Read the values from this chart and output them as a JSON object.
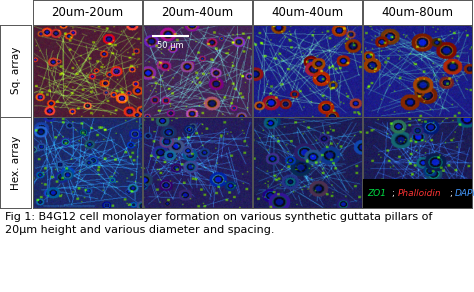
{
  "col_labels": [
    "20um-20um",
    "20um-40um",
    "40um-40um",
    "40um-80um"
  ],
  "row_labels": [
    "Sq. array",
    "Hex. array"
  ],
  "scale_bar_text": "50 μm",
  "legend_zo1": "ZO1",
  "legend_phalloidin": "Phalloidin",
  "legend_dapi": "DAPI",
  "legend_zo1_color": "#00dd44",
  "legend_phalloidin_color": "#ff3333",
  "legend_dapi_color": "#4499ff",
  "caption_line1": "Fig 1: B4G12 cell monolayer formation on various synthetic guttata pillars of",
  "caption_line2": "20μm height and various diameter and spacing.",
  "bg_color": "#ffffff",
  "caption_fontsize": 8.0,
  "label_fontsize": 7.5,
  "header_fontsize": 8.5,
  "fig_width": 4.74,
  "fig_height": 2.92,
  "dpi": 100,
  "cell_params": [
    [
      {
        "bg": [
          0.25,
          0.05,
          0.15
        ],
        "ring_color": [
          0.85,
          0.15,
          0.5
        ],
        "ring2": [
          0.9,
          0.3,
          0.0
        ],
        "n_cells": 35,
        "r_min": 4,
        "r_max": 9,
        "net_color": [
          0.3,
          0.8,
          0.1
        ],
        "blue_bg": 0.0
      },
      {
        "bg": [
          0.2,
          0.08,
          0.2
        ],
        "ring_color": [
          0.7,
          0.3,
          0.0
        ],
        "ring2": [
          0.5,
          0.1,
          0.6
        ],
        "n_cells": 25,
        "r_min": 5,
        "r_max": 12,
        "net_color": [
          0.2,
          0.7,
          0.5
        ],
        "blue_bg": 0.3
      },
      {
        "bg": [
          0.05,
          0.05,
          0.35
        ],
        "ring_color": [
          0.7,
          0.3,
          0.0
        ],
        "ring2": [
          0.6,
          0.2,
          0.0
        ],
        "n_cells": 18,
        "r_min": 7,
        "r_max": 14,
        "net_color": [
          0.3,
          0.7,
          0.2
        ],
        "blue_bg": 0.5
      },
      {
        "bg": [
          0.05,
          0.05,
          0.35
        ],
        "ring_color": [
          0.6,
          0.25,
          0.0
        ],
        "ring2": [
          0.5,
          0.15,
          0.0
        ],
        "n_cells": 14,
        "r_min": 8,
        "r_max": 16,
        "net_color": [
          0.2,
          0.6,
          0.2
        ],
        "blue_bg": 0.5
      }
    ],
    [
      {
        "bg": [
          0.05,
          0.1,
          0.25
        ],
        "ring_color": [
          0.0,
          0.5,
          0.7
        ],
        "ring2": [
          0.1,
          0.3,
          0.6
        ],
        "n_cells": 30,
        "r_min": 5,
        "r_max": 11,
        "net_color": [
          0.1,
          0.6,
          0.8
        ],
        "blue_bg": 0.4
      },
      {
        "bg": [
          0.08,
          0.05,
          0.2
        ],
        "ring_color": [
          0.1,
          0.4,
          0.6
        ],
        "ring2": [
          0.15,
          0.2,
          0.5
        ],
        "n_cells": 22,
        "r_min": 6,
        "r_max": 13,
        "net_color": [
          0.1,
          0.5,
          0.7
        ],
        "blue_bg": 0.4
      },
      {
        "bg": [
          0.05,
          0.05,
          0.2
        ],
        "ring_color": [
          0.0,
          0.4,
          0.6
        ],
        "ring2": [
          0.1,
          0.2,
          0.5
        ],
        "n_cells": 16,
        "r_min": 8,
        "r_max": 16,
        "net_color": [
          0.1,
          0.5,
          0.6
        ],
        "blue_bg": 0.3
      },
      {
        "bg": [
          0.05,
          0.05,
          0.2
        ],
        "ring_color": [
          0.0,
          0.35,
          0.6
        ],
        "ring2": [
          0.05,
          0.2,
          0.5
        ],
        "n_cells": 12,
        "r_min": 9,
        "r_max": 18,
        "net_color": [
          0.1,
          0.4,
          0.7
        ],
        "blue_bg": 0.3
      }
    ]
  ]
}
